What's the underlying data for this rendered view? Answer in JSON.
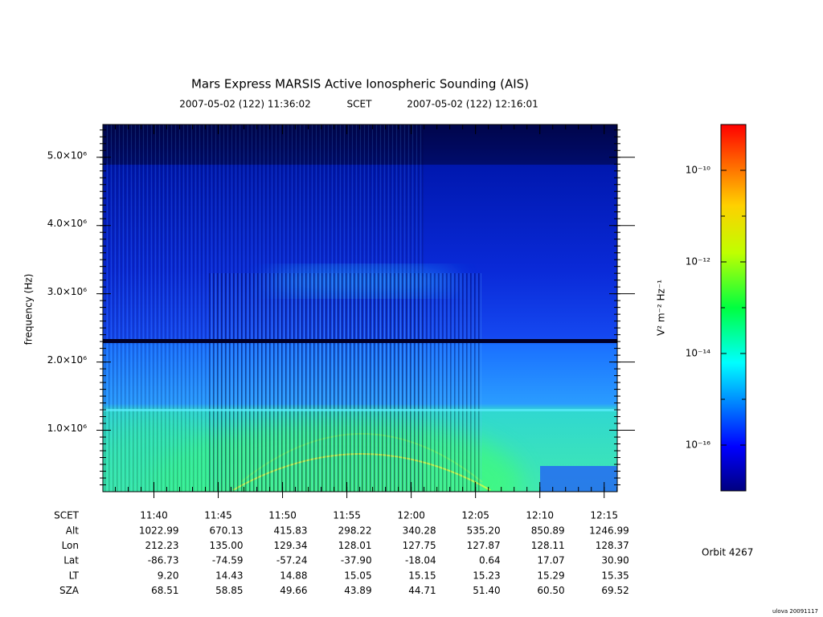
{
  "chart_data": {
    "type": "spectrogram",
    "title": "Mars Express MARSIS Active Ionospheric Sounding (AIS)",
    "subtitle_start": "2007-05-02 (122) 11:36:02",
    "subtitle_mid": "SCET",
    "subtitle_end": "2007-05-02 (122) 12:16:01",
    "y_label": "frequency (Hz)",
    "ylim": [
      100000,
      5480000
    ],
    "yticks": [
      {
        "value": 1000000,
        "label": "1.0×10⁶"
      },
      {
        "value": 2000000,
        "label": "2.0×10⁶"
      },
      {
        "value": 3000000,
        "label": "3.0×10⁶"
      },
      {
        "value": 4000000,
        "label": "4.0×10⁶"
      },
      {
        "value": 5000000,
        "label": "5.0×10⁶"
      }
    ],
    "xlim": [
      "11:36:02",
      "12:16:01"
    ],
    "x_label": "SCET",
    "xticks": [
      "11:40",
      "11:45",
      "11:50",
      "11:55",
      "12:00",
      "12:05",
      "12:10",
      "12:15"
    ],
    "ephemeris": [
      {
        "name": "Alt",
        "values": [
          "1022.99",
          "670.13",
          "415.83",
          "298.22",
          "340.28",
          "535.20",
          "850.89",
          "1246.99"
        ]
      },
      {
        "name": "Lon",
        "values": [
          "212.23",
          "135.00",
          "129.34",
          "128.01",
          "127.75",
          "127.87",
          "128.11",
          "128.37"
        ]
      },
      {
        "name": "Lat",
        "values": [
          "-86.73",
          "-74.59",
          "-57.24",
          "-37.90",
          "-18.04",
          "0.64",
          "17.07",
          "30.90"
        ]
      },
      {
        "name": "LT",
        "values": [
          "9.20",
          "14.43",
          "14.88",
          "15.05",
          "15.15",
          "15.23",
          "15.29",
          "15.35"
        ]
      },
      {
        "name": "SZA",
        "values": [
          "68.51",
          "58.85",
          "49.66",
          "43.89",
          "44.71",
          "51.40",
          "60.50",
          "69.52"
        ]
      }
    ],
    "colorbar": {
      "label": "V² m⁻² Hz⁻¹",
      "log_scale": true,
      "clim": [
        1e-17,
        1e-09
      ],
      "ticks": [
        {
          "value": 1e-10,
          "label": "10⁻¹⁰"
        },
        {
          "value": 1e-12,
          "label": "10⁻¹²"
        },
        {
          "value": 1e-14,
          "label": "10⁻¹⁴"
        },
        {
          "value": 1e-16,
          "label": "10⁻¹⁶"
        }
      ]
    },
    "orbit_label": "Orbit 4267",
    "credit": "ulova 20091117"
  }
}
